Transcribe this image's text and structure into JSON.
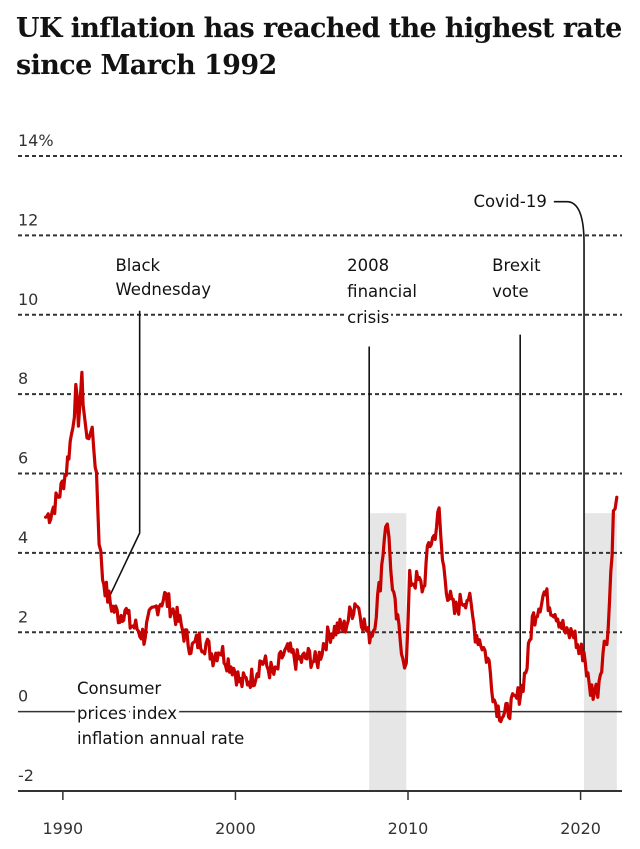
{
  "title": "UK inflation has reached the highest rate since March 1992",
  "chart_data": {
    "type": "line",
    "title": "UK inflation has reached the highest rate since March 1992",
    "xlabel": "",
    "ylabel": "",
    "xlim": [
      1987.4,
      2022.4
    ],
    "ylim": [
      -2,
      14
    ],
    "x_ticks": [
      1990,
      2000,
      2010,
      2020
    ],
    "x_tick_labels": [
      "1990",
      "2000",
      "2010",
      "2020"
    ],
    "y_ticks": [
      -2,
      0,
      2,
      4,
      6,
      8,
      10,
      12,
      14
    ],
    "y_tick_labels": [
      "-2",
      "0",
      "2",
      "4",
      "6",
      "8",
      "10",
      "12",
      "14%"
    ],
    "grid": "horizontal dotted lines",
    "line_color": "#c70000",
    "shade_color": "#e6e6e6",
    "series": [
      {
        "name": "Consumer prices index inflation annual rate",
        "points": [
          [
            1989.0,
            4.9
          ],
          [
            1989.3,
            5.0
          ],
          [
            1989.6,
            5.3
          ],
          [
            1989.9,
            5.6
          ],
          [
            1990.2,
            6.1
          ],
          [
            1990.5,
            7.0
          ],
          [
            1990.75,
            8.0
          ],
          [
            1990.9,
            7.4
          ],
          [
            1991.1,
            8.3
          ],
          [
            1991.25,
            7.5
          ],
          [
            1991.4,
            6.8
          ],
          [
            1991.6,
            7.2
          ],
          [
            1991.8,
            6.6
          ],
          [
            1991.95,
            6.0
          ],
          [
            1992.1,
            4.4
          ],
          [
            1992.3,
            3.4
          ],
          [
            1992.6,
            2.9
          ],
          [
            1992.9,
            2.6
          ],
          [
            1993.3,
            2.4
          ],
          [
            1993.6,
            2.6
          ],
          [
            1993.9,
            2.2
          ],
          [
            1994.3,
            2.1
          ],
          [
            1994.7,
            1.9
          ],
          [
            1995.0,
            2.3
          ],
          [
            1995.5,
            2.7
          ],
          [
            1995.9,
            2.9
          ],
          [
            1996.3,
            2.6
          ],
          [
            1996.7,
            2.3
          ],
          [
            1997.1,
            1.9
          ],
          [
            1997.5,
            1.6
          ],
          [
            1997.9,
            1.8
          ],
          [
            1998.3,
            1.7
          ],
          [
            1998.7,
            1.4
          ],
          [
            1999.1,
            1.6
          ],
          [
            1999.5,
            1.3
          ],
          [
            1999.9,
            1.1
          ],
          [
            2000.3,
            0.7
          ],
          [
            2000.7,
            0.8
          ],
          [
            2001.1,
            0.9
          ],
          [
            2001.5,
            1.3
          ],
          [
            2001.9,
            1.1
          ],
          [
            2002.3,
            0.9
          ],
          [
            2002.7,
            1.4
          ],
          [
            2003.1,
            1.5
          ],
          [
            2003.5,
            1.3
          ],
          [
            2003.9,
            1.3
          ],
          [
            2004.3,
            1.4
          ],
          [
            2004.7,
            1.2
          ],
          [
            2005.1,
            1.7
          ],
          [
            2005.5,
            2.0
          ],
          [
            2005.9,
            2.1
          ],
          [
            2006.3,
            2.1
          ],
          [
            2006.7,
            2.5
          ],
          [
            2007.0,
            2.8
          ],
          [
            2007.3,
            2.4
          ],
          [
            2007.7,
            1.9
          ],
          [
            2008.0,
            2.1
          ],
          [
            2008.4,
            3.3
          ],
          [
            2008.7,
            4.8
          ],
          [
            2008.9,
            4.4
          ],
          [
            2009.1,
            3.0
          ],
          [
            2009.4,
            2.2
          ],
          [
            2009.7,
            1.5
          ],
          [
            2009.9,
            1.1
          ],
          [
            2010.1,
            3.3
          ],
          [
            2010.5,
            3.3
          ],
          [
            2010.9,
            3.1
          ],
          [
            2011.2,
            4.2
          ],
          [
            2011.5,
            4.4
          ],
          [
            2011.8,
            5.0
          ],
          [
            2012.0,
            3.8
          ],
          [
            2012.3,
            3.0
          ],
          [
            2012.7,
            2.5
          ],
          [
            2013.1,
            2.8
          ],
          [
            2013.5,
            2.9
          ],
          [
            2013.9,
            2.0
          ],
          [
            2014.3,
            1.7
          ],
          [
            2014.7,
            1.2
          ],
          [
            2015.0,
            0.3
          ],
          [
            2015.3,
            0.0
          ],
          [
            2015.6,
            -0.1
          ],
          [
            2015.9,
            0.1
          ],
          [
            2016.3,
            0.3
          ],
          [
            2016.6,
            0.6
          ],
          [
            2016.9,
            1.2
          ],
          [
            2017.2,
            2.3
          ],
          [
            2017.5,
            2.6
          ],
          [
            2017.9,
            3.0
          ],
          [
            2018.2,
            2.7
          ],
          [
            2018.6,
            2.5
          ],
          [
            2018.9,
            2.2
          ],
          [
            2019.2,
            1.9
          ],
          [
            2019.6,
            2.0
          ],
          [
            2019.9,
            1.5
          ],
          [
            2020.2,
            1.5
          ],
          [
            2020.5,
            0.6
          ],
          [
            2020.8,
            0.5
          ],
          [
            2021.0,
            0.6
          ],
          [
            2021.3,
            1.5
          ],
          [
            2021.6,
            2.1
          ],
          [
            2021.9,
            4.9
          ],
          [
            2022.1,
            5.4
          ]
        ]
      }
    ],
    "shaded_periods": [
      {
        "start": 2007.75,
        "end": 2009.9
      },
      {
        "start": 2020.2,
        "end": 2022.1
      }
    ],
    "annotations": [
      {
        "label": "Black Wednesday",
        "lines": [
          "Black",
          "Wednesday"
        ],
        "x": 1992.7
      },
      {
        "label": "2008 financial crisis",
        "lines": [
          "2008",
          "financial",
          "crisis"
        ],
        "x": 2007.75
      },
      {
        "label": "Brexit vote",
        "lines": [
          "Brexit",
          "vote"
        ],
        "x": 2016.5
      },
      {
        "label": "Covid-19",
        "lines": [
          "Covid-19"
        ],
        "x": 2020.2
      }
    ],
    "series_label_lines": [
      "Consumer",
      "prices index",
      "inflation annual rate"
    ]
  }
}
